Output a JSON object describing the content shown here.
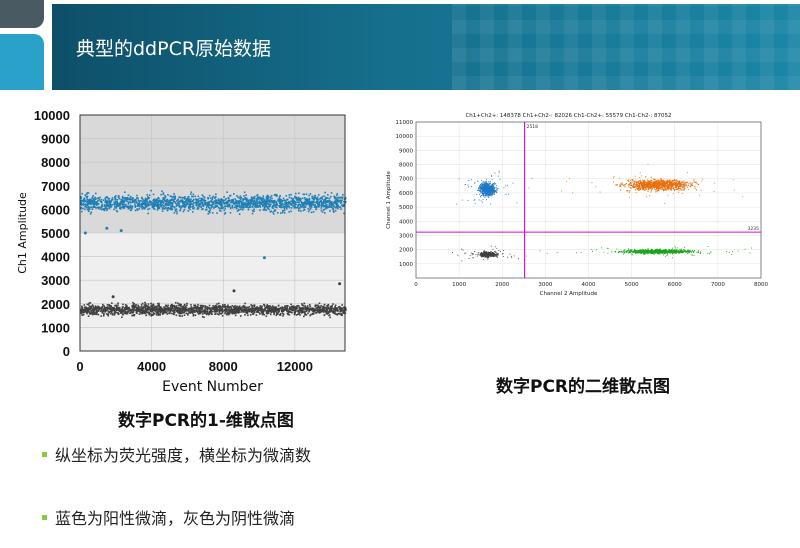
{
  "header": {
    "title": "典型的ddPCR原始数据"
  },
  "captions": {
    "left": "数字PCR的1-维散点图",
    "right": "数字PCR的二维散点图"
  },
  "bullets": [
    "纵坐标为荧光强度，横坐标为微滴数",
    "蓝色为阳性微滴，灰色为阴性微滴"
  ],
  "colors": {
    "header": "#156f8d",
    "positive": "#1f7fb6",
    "negative": "#404040",
    "bullet": "#8dc63f",
    "threshold": "#e000e0"
  },
  "chart_data": [
    {
      "type": "scatter",
      "title": "",
      "xlabel": "Event Number",
      "ylabel": "Ch1 Amplitude",
      "xlim": [
        0,
        14800
      ],
      "ylim": [
        0,
        10000
      ],
      "xticks": [
        0,
        4000,
        8000,
        12000
      ],
      "yticks": [
        0,
        1000,
        2000,
        3000,
        4000,
        5000,
        6000,
        7000,
        8000,
        9000,
        10000
      ],
      "grid": true,
      "threshold": 5000,
      "series": [
        {
          "color": "#1f7fb6",
          "band_center": 6300,
          "band_halfwidth": 300,
          "outliers": [
            [
              300,
              5000
            ],
            [
              1500,
              5200
            ],
            [
              2300,
              5100
            ],
            [
              10300,
              3950
            ]
          ]
        },
        {
          "color": "#404040",
          "band_center": 1780,
          "band_halfwidth": 200,
          "outliers": [
            [
              1850,
              2300
            ],
            [
              8600,
              2550
            ],
            [
              14500,
              2850
            ]
          ]
        }
      ]
    },
    {
      "type": "scatter",
      "title": "Ch1+Ch2+: 148378  Ch1+Ch2-: 82026  Ch1-Ch2+: 55579  Ch1-Ch2-: 87052",
      "xlabel": "Channel 2 Amplitude",
      "ylabel": "Channel 1 Amplitude",
      "xlim": [
        0,
        8000
      ],
      "ylim": [
        0,
        11000
      ],
      "xticks": [
        0,
        1000,
        2000,
        3000,
        4000,
        5000,
        6000,
        7000,
        8000
      ],
      "yticks": [
        1000,
        2000,
        3000,
        4000,
        5000,
        6000,
        7000,
        8000,
        9000,
        10000,
        11000
      ],
      "grid": true,
      "threshold_x": 2518,
      "threshold_y": 3235,
      "threshold_x_label": "2518",
      "threshold_y_label": "3235",
      "clusters": [
        {
          "label": "Ch1+Ch2-",
          "color": "#1f78c8",
          "center": [
            1650,
            6300
          ]
        },
        {
          "label": "Ch1+Ch2+",
          "color": "#e87010",
          "center": [
            5600,
            6600
          ]
        },
        {
          "label": "Ch1-Ch2+",
          "color": "#1aa61a",
          "center": [
            5600,
            1900
          ]
        },
        {
          "label": "Ch1-Ch2-",
          "color": "#404040",
          "center": [
            1650,
            1700
          ]
        }
      ]
    }
  ]
}
